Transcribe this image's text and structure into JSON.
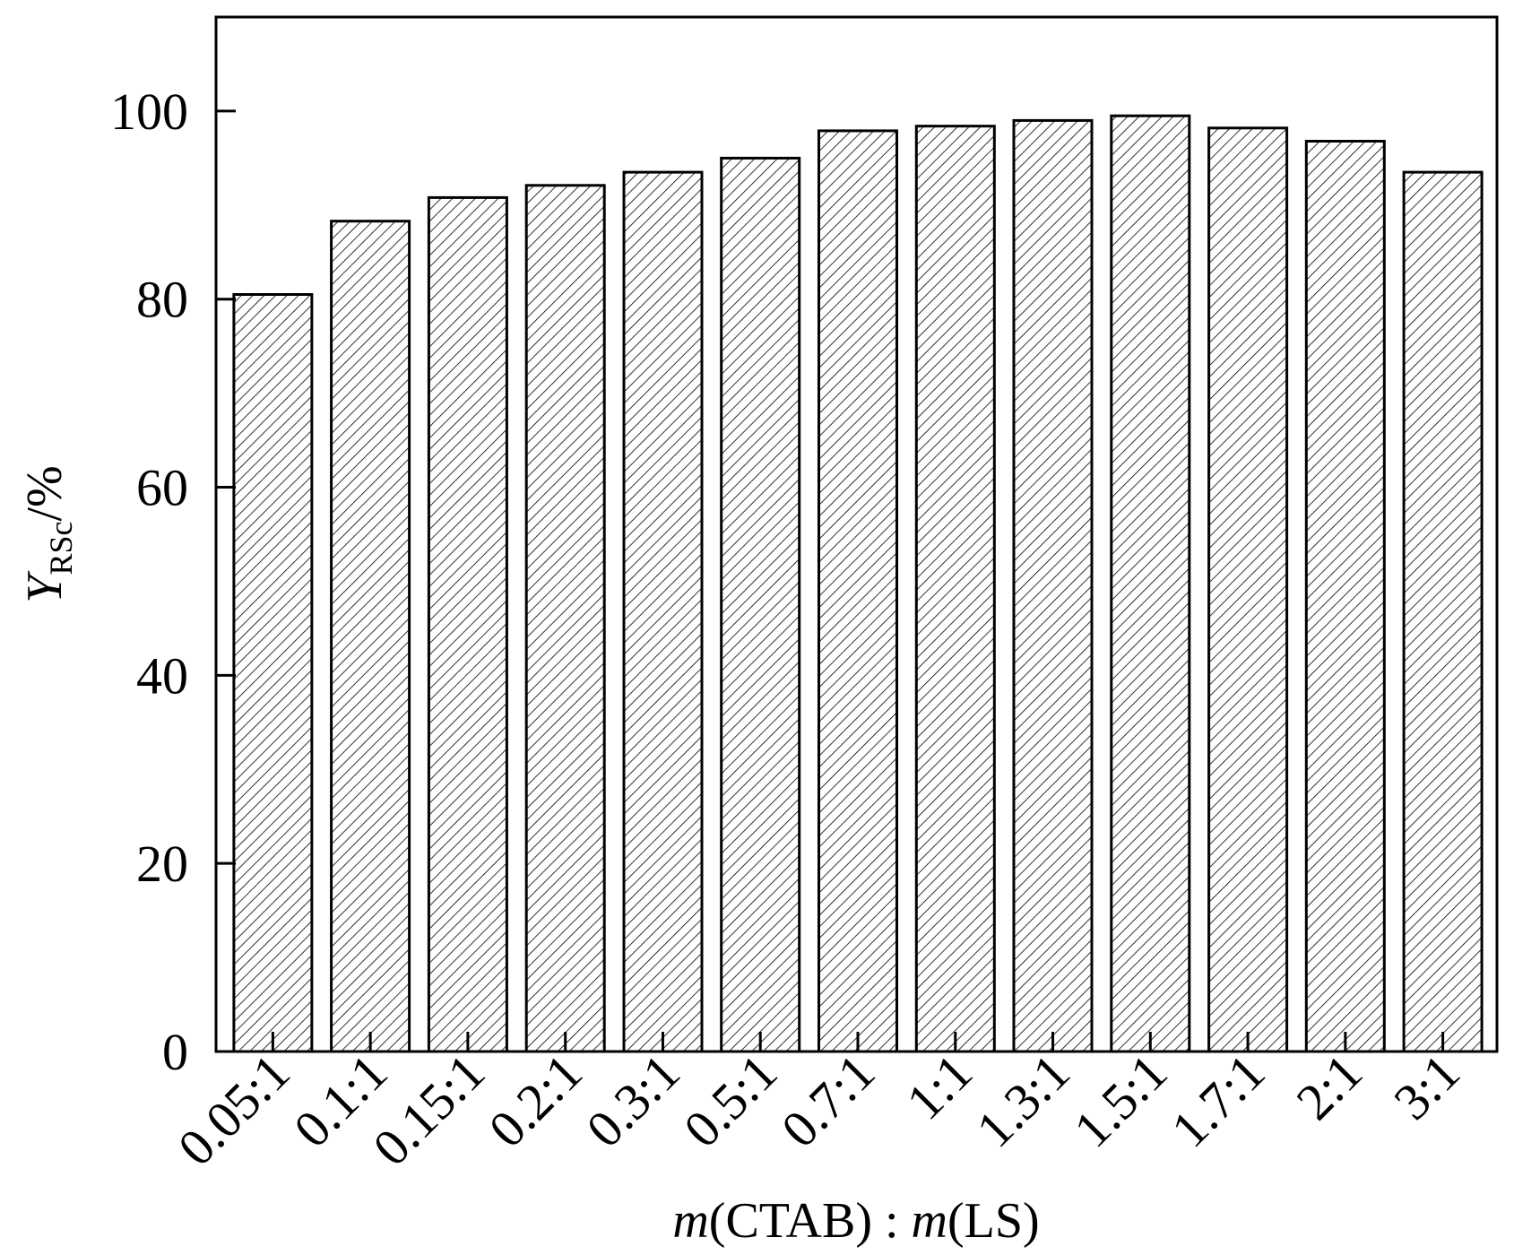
{
  "chart_data": {
    "type": "bar",
    "categories": [
      "0.05:1",
      "0.1:1",
      "0.15:1",
      "0.2:1",
      "0.3:1",
      "0.5:1",
      "0.7:1",
      "1:1",
      "1.3:1",
      "1.5:1",
      "1.7:1",
      "2:1",
      "3:1"
    ],
    "values": [
      80.5,
      88.3,
      90.8,
      92.1,
      93.5,
      95.0,
      97.9,
      98.4,
      99.0,
      99.5,
      98.2,
      96.8,
      93.5
    ],
    "ylim": [
      0,
      110
    ],
    "yticks": [
      0,
      20,
      40,
      60,
      80,
      100
    ],
    "ytick_labels": [
      "0",
      "20",
      "40",
      "60",
      "80",
      "100"
    ],
    "xlabel": {
      "m1": "m",
      "paren1": "(CTAB)",
      "colon": " : ",
      "m2": "m",
      "paren2": "(LS)"
    },
    "ylabel": {
      "main": "Y",
      "sub": "RSc",
      "unit": "/%"
    },
    "bar_fill": "hatched",
    "grid": false,
    "legend": "none",
    "colors": {
      "bar_edge": "#000000",
      "hatch": "#000000",
      "background": "#ffffff"
    }
  }
}
